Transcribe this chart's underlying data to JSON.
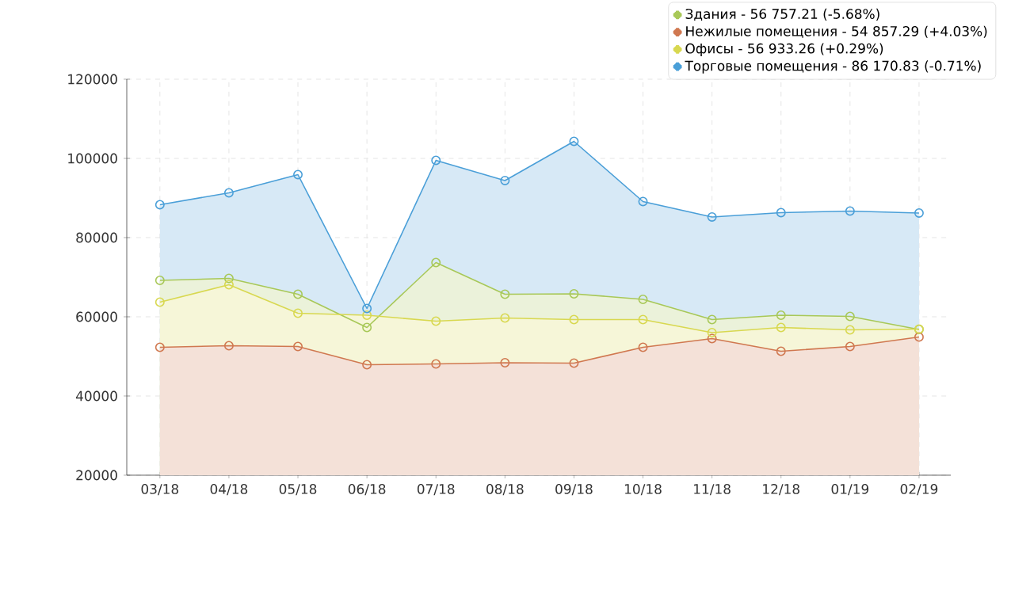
{
  "chart_data": {
    "type": "area",
    "categories": [
      "03/18",
      "04/18",
      "05/18",
      "06/18",
      "07/18",
      "08/18",
      "09/18",
      "10/18",
      "11/18",
      "12/18",
      "01/19",
      "02/19"
    ],
    "series": [
      {
        "name": "Здания - 56 757.21 (-5.68%)",
        "color": "#a8c858",
        "values": [
          69200,
          69700,
          65700,
          57300,
          73700,
          65700,
          65800,
          64400,
          59300,
          60400,
          60100,
          56800
        ]
      },
      {
        "name": "Нежилые помещения - 54 857.29 (+4.03%)",
        "color": "#d07850",
        "values": [
          52300,
          52700,
          52500,
          47900,
          48100,
          48400,
          48300,
          52300,
          54500,
          51300,
          52500,
          54900
        ]
      },
      {
        "name": "Офисы - 56 933.26 (+0.29%)",
        "color": "#d8d850",
        "values": [
          63700,
          68100,
          60900,
          60400,
          58900,
          59700,
          59300,
          59300,
          56000,
          57300,
          56700,
          56900
        ]
      },
      {
        "name": "Торговые помещения - 86 170.83 (-0.71%)",
        "color": "#4a9fd8",
        "values": [
          88300,
          91300,
          95900,
          62100,
          99500,
          94400,
          104300,
          89100,
          85200,
          86300,
          86700,
          86200
        ]
      }
    ],
    "ylim": [
      20000,
      120000
    ],
    "yticks": [
      20000,
      40000,
      60000,
      80000,
      100000,
      120000
    ],
    "grid": true,
    "legend": "top right",
    "marker": "circle",
    "line_style": "solid"
  }
}
